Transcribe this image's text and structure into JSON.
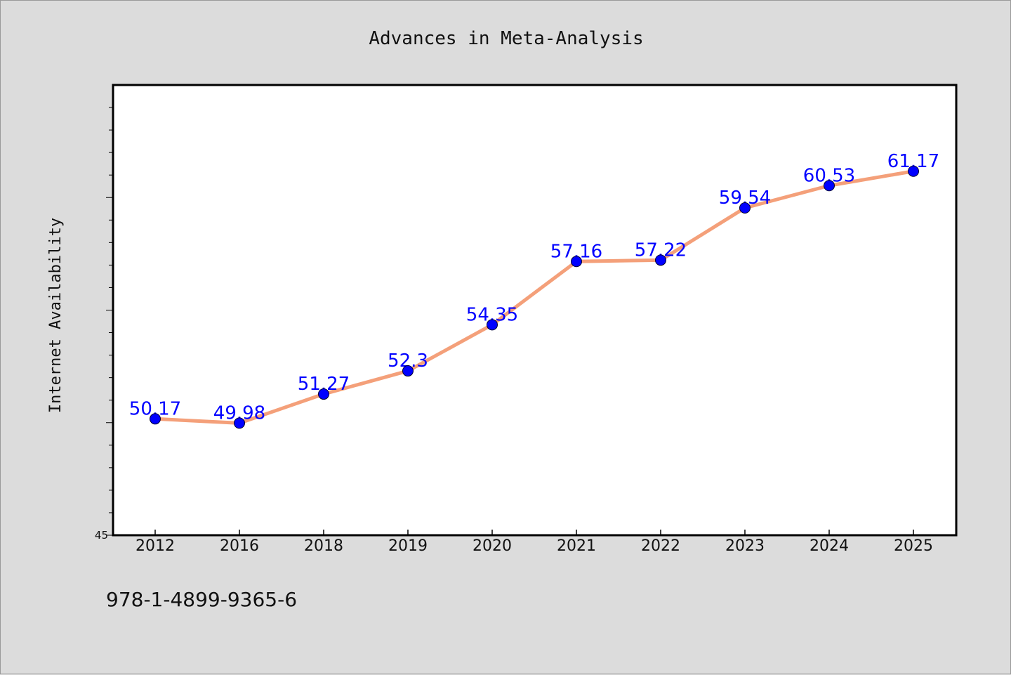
{
  "chart_data": {
    "type": "line",
    "title": "Advances in Meta-Analysis",
    "xlabel": "",
    "ylabel": "Internet Availability",
    "categories": [
      "2012",
      "2016",
      "2018",
      "2019",
      "2020",
      "2021",
      "2022",
      "2023",
      "2024",
      "2025"
    ],
    "series": [
      {
        "values": [
          50.17,
          49.98,
          51.27,
          52.3,
          54.35,
          57.16,
          57.22,
          59.54,
          60.53,
          61.17
        ],
        "data_labels": [
          "50.17",
          "49.98",
          "51.27",
          "52.3",
          "54.35",
          "57.16",
          "57.22",
          "59.54",
          "60.53",
          "61.17"
        ]
      }
    ],
    "ylim": [
      45,
      65
    ],
    "y_tick_labels": [
      "45"
    ],
    "grid": false,
    "legend": "none",
    "colors": {
      "line": "#f4a07a",
      "marker": "#0000ff",
      "data_label": "#0000ff",
      "background": "#dcdcdc",
      "plot_background": "#ffffff"
    }
  },
  "footer": {
    "text": "978-1-4899-9365-6"
  }
}
